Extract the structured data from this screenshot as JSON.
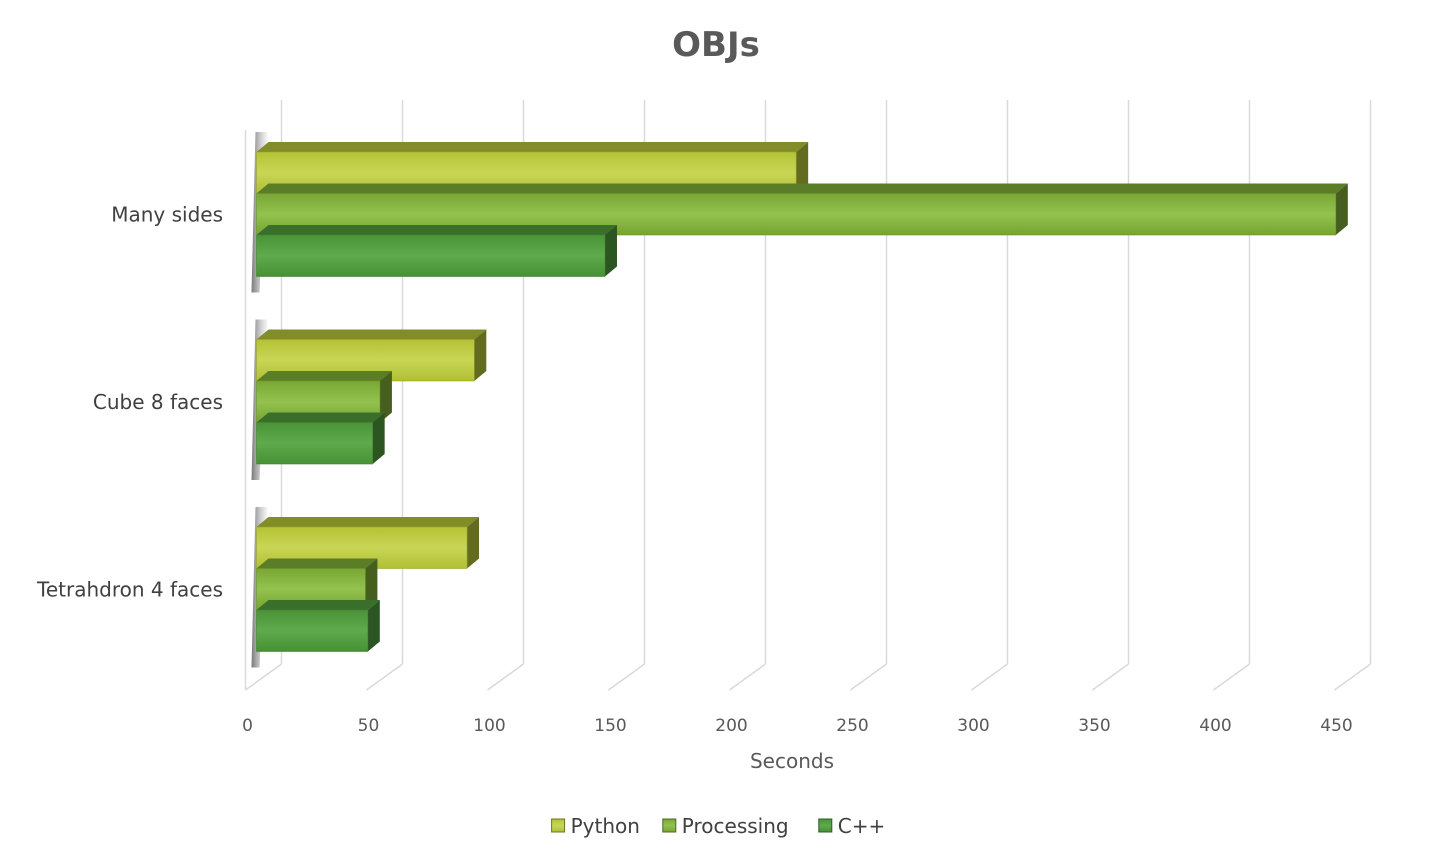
{
  "chart_data": {
    "type": "bar",
    "orientation": "horizontal",
    "style": "3d-clustered-bar",
    "title": "OBJs",
    "xlabel": "Seconds",
    "ylabel": "",
    "xlim": [
      0,
      450
    ],
    "x_ticks": [
      "0",
      "50",
      "100",
      "150",
      "200",
      "250",
      "300",
      "350",
      "400",
      "450"
    ],
    "grid": true,
    "legend_position": "bottom",
    "categories": [
      "Many sides",
      "Cube 8 faces",
      "Tetrahdron 4 faces"
    ],
    "series": [
      {
        "name": "Python",
        "color": "#b4c338",
        "values": [
          223,
          90,
          87
        ]
      },
      {
        "name": "Processing",
        "color": "#7fad36",
        "values": [
          446,
          51,
          45
        ]
      },
      {
        "name": "C++",
        "color": "#4f9a3c",
        "values": [
          144,
          48,
          46
        ]
      }
    ]
  }
}
